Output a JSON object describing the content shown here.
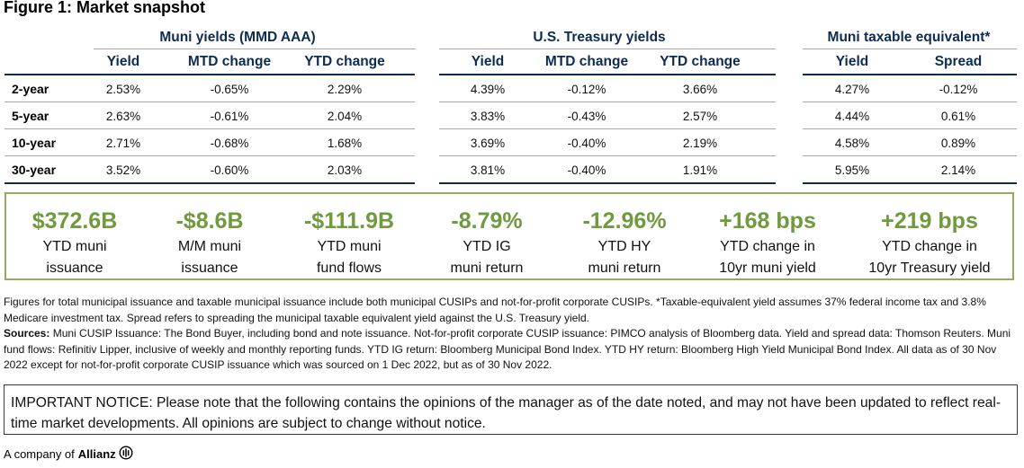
{
  "title": "Figure 1: Market snapshot",
  "groups": [
    "Muni yields (MMD AAA)",
    "U.S. Treasury yields",
    "Muni taxable equivalent*"
  ],
  "columns": {
    "muni": [
      "Yield",
      "MTD change",
      "YTD change"
    ],
    "treasury": [
      "Yield",
      "MTD change",
      "YTD change"
    ],
    "taxable": [
      "Yield",
      "Spread"
    ]
  },
  "rows": [
    {
      "label": "2-year",
      "muni": [
        "2.53%",
        "-0.65%",
        "2.29%"
      ],
      "treasury": [
        "4.39%",
        "-0.12%",
        "3.66%"
      ],
      "taxable": [
        "4.27%",
        "-0.12%"
      ]
    },
    {
      "label": "5-year",
      "muni": [
        "2.63%",
        "-0.61%",
        "2.04%"
      ],
      "treasury": [
        "3.83%",
        "-0.43%",
        "2.57%"
      ],
      "taxable": [
        "4.44%",
        "0.61%"
      ]
    },
    {
      "label": "10-year",
      "muni": [
        "2.71%",
        "-0.68%",
        "1.68%"
      ],
      "treasury": [
        "3.69%",
        "-0.40%",
        "2.19%"
      ],
      "taxable": [
        "4.58%",
        "0.89%"
      ]
    },
    {
      "label": "30-year",
      "muni": [
        "3.52%",
        "-0.60%",
        "2.03%"
      ],
      "treasury": [
        "3.81%",
        "-0.40%",
        "1.91%"
      ],
      "taxable": [
        "5.95%",
        "2.14%"
      ]
    }
  ],
  "stats": [
    {
      "value": "$372.6B",
      "line1": "YTD muni",
      "line2": "issuance"
    },
    {
      "value": "-$8.6B",
      "line1": "M/M muni",
      "line2": "issuance"
    },
    {
      "value": "-$111.9B",
      "line1": "YTD muni",
      "line2": "fund flows"
    },
    {
      "value": "-8.79%",
      "line1": "YTD IG",
      "line2": "muni return"
    },
    {
      "value": "-12.96%",
      "line1": "YTD HY",
      "line2": "muni return"
    },
    {
      "value": "+168 bps",
      "line1": "YTD change in",
      "line2": "10yr muni yield"
    },
    {
      "value": "+219 bps",
      "line1": "YTD change in",
      "line2": "10yr Treasury yield"
    }
  ],
  "notes": {
    "line1": "Figures for total municipal issuance and taxable municipal issuance include both municipal CUSIPs and not-for-profit corporate CUSIPs. *Taxable-equivalent yield assumes 37% federal income tax and 3.8% Medicare investment tax. Spread refers to spreading the municipal taxable equivalent yield against the U.S. Treasury yield.",
    "sources_label": "Sources:",
    "sources": " Muni CUSIP Issuance: The Bond Buyer, including bond and note issuance. Not-for-profit corporate CUSIP issuance: PIMCO analysis of Bloomberg data. Yield and spread data: Thomson Reuters. Muni fund flows: Refinitiv Lipper, inclusive of weekly and monthly reporting funds. YTD IG return: Bloomberg Municipal Bond Index. YTD HY return: Bloomberg High Yield Municipal Bond Index. All data as of 30 Nov 2022 except for not-for-profit corporate CUSIP issuance which was sourced on 1 Dec 2022, but as of 30 Nov 2022."
  },
  "notice": "IMPORTANT NOTICE: Please note that the following contains the opinions of the manager as of the date noted, and may not have been updated to reflect real-time market developments. All opinions are subject to change without notice.",
  "footer": {
    "prefix": "A company of",
    "brand": "Allianz"
  },
  "colors": {
    "navy": "#0c2c52",
    "green": "#6f9a3d",
    "green_border": "#8fad5b"
  }
}
